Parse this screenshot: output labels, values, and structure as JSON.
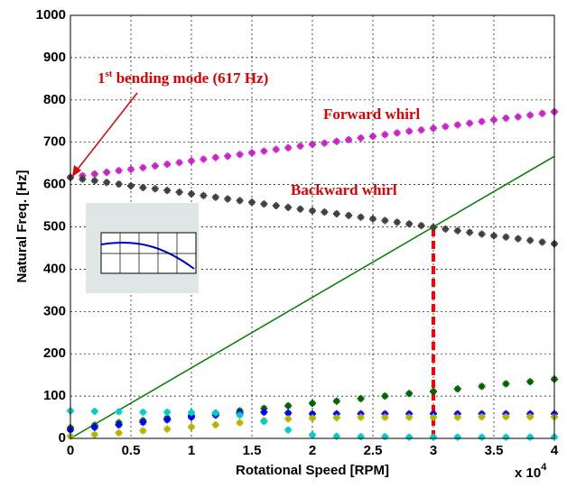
{
  "chart_data": {
    "type": "scatter",
    "ylabel": "Natural Freq. [Hz]",
    "xlabel": "Rotational Speed [RPM]",
    "x_multiplier": {
      "base": "x 10",
      "exponent": "4"
    },
    "xlim": [
      0,
      4
    ],
    "xticks": [
      0,
      0.5,
      1,
      1.5,
      2,
      2.5,
      3,
      3.5,
      4
    ],
    "ylim": [
      0,
      1000
    ],
    "yticks": [
      0,
      100,
      200,
      300,
      400,
      500,
      600,
      700,
      800,
      900,
      1000
    ],
    "grid": true,
    "series": [
      {
        "style": "markers",
        "color": "#cc22cc",
        "x": [
          0,
          0.1,
          0.2,
          0.3,
          0.4,
          0.5,
          0.6,
          0.7,
          0.8,
          0.9,
          1,
          1.1,
          1.2,
          1.3,
          1.4,
          1.5,
          1.6,
          1.7,
          1.8,
          1.9,
          2,
          2.1,
          2.2,
          2.3,
          2.4,
          2.5,
          2.6,
          2.7,
          2.8,
          2.9,
          3,
          3.1,
          3.2,
          3.3,
          3.4,
          3.5,
          3.6,
          3.7,
          3.8,
          3.9,
          4
        ],
        "values": [
          617,
          621,
          625,
          629,
          633,
          636,
          640,
          644,
          648,
          652,
          656,
          660,
          664,
          667,
          671,
          675,
          679,
          683,
          687,
          691,
          695,
          698,
          702,
          706,
          710,
          714,
          718,
          722,
          726,
          729,
          733,
          737,
          741,
          745,
          749,
          753,
          757,
          760,
          764,
          768,
          772
        ]
      },
      {
        "style": "markers",
        "color": "#404040",
        "x": [
          0,
          0.1,
          0.2,
          0.3,
          0.4,
          0.5,
          0.6,
          0.7,
          0.8,
          0.9,
          1,
          1.1,
          1.2,
          1.3,
          1.4,
          1.5,
          1.6,
          1.7,
          1.8,
          1.9,
          2,
          2.1,
          2.2,
          2.3,
          2.4,
          2.5,
          2.6,
          2.7,
          2.8,
          2.9,
          3,
          3.1,
          3.2,
          3.3,
          3.4,
          3.5,
          3.6,
          3.7,
          3.8,
          3.9,
          4
        ],
        "values": [
          617,
          613,
          609,
          605,
          601,
          597,
          593,
          590,
          586,
          582,
          578,
          574,
          570,
          566,
          562,
          558,
          554,
          550,
          546,
          542,
          538,
          535,
          531,
          527,
          523,
          519,
          515,
          511,
          507,
          503,
          499,
          495,
          491,
          487,
          483,
          479,
          476,
          472,
          468,
          464,
          460
        ]
      },
      {
        "style": "line",
        "color": "#008000",
        "x": [
          0,
          4
        ],
        "values": [
          0,
          666.7
        ]
      },
      {
        "style": "markers",
        "color": "#006400",
        "x": [
          0,
          0.2,
          0.4,
          0.6,
          0.8,
          1,
          1.2,
          1.4,
          1.6,
          1.8,
          2,
          2.2,
          2.4,
          2.6,
          2.8,
          3,
          3.2,
          3.4,
          3.6,
          3.8,
          4
        ],
        "values": [
          25,
          31,
          37,
          42,
          48,
          54,
          60,
          65,
          71,
          77,
          83,
          88,
          94,
          100,
          106,
          111,
          117,
          123,
          129,
          134,
          140
        ]
      },
      {
        "style": "markers",
        "color": "#0000ff",
        "x": [
          0,
          0.2,
          0.4,
          0.6,
          0.8,
          1,
          1.2,
          1.4,
          1.6,
          1.8,
          2,
          2.2,
          2.4,
          2.6,
          2.8,
          3,
          3.2,
          3.4,
          3.6,
          3.8,
          4
        ],
        "values": [
          20,
          26,
          32,
          38,
          44,
          50,
          55,
          60,
          62,
          60,
          58,
          58,
          58,
          58,
          58,
          58,
          58,
          58,
          58,
          58,
          58
        ]
      },
      {
        "style": "markers",
        "color": "#b5b500",
        "x": [
          0,
          0.2,
          0.4,
          0.6,
          0.8,
          1,
          1.2,
          1.4,
          1.6,
          1.8,
          2,
          2.2,
          2.4,
          2.6,
          2.8,
          3,
          3.2,
          3.4,
          3.6,
          3.8,
          4
        ],
        "values": [
          5,
          9,
          13,
          18,
          22,
          27,
          32,
          37,
          42,
          46,
          48,
          49,
          50,
          50,
          50,
          50,
          50,
          51,
          51,
          51,
          51
        ]
      },
      {
        "style": "markers",
        "color": "#00cccc",
        "x": [
          0,
          0.2,
          0.4,
          0.6,
          0.8,
          1,
          1.2,
          1.4,
          1.6,
          1.8,
          2,
          2.2,
          2.4,
          2.6,
          2.8,
          3,
          3.2,
          3.4,
          3.6,
          3.8,
          4
        ],
        "values": [
          65,
          64,
          63,
          62,
          62,
          61,
          60,
          55,
          40,
          20,
          8,
          5,
          4,
          4,
          3,
          3,
          3,
          3,
          3,
          3,
          3
        ]
      }
    ],
    "crossing": {
      "x": 3,
      "y": 500,
      "color": "#ff0000"
    },
    "annotations": {
      "mode": {
        "ordinal": "1",
        "suffix": "st",
        "rest": " bending mode (617 Hz)"
      },
      "forward": "Forward whirl",
      "backward": "Backward whirl"
    }
  }
}
